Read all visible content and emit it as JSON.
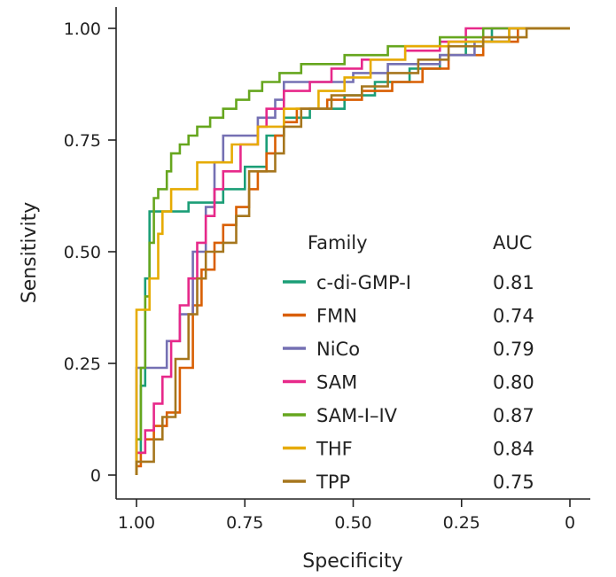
{
  "chart_data": {
    "type": "line",
    "title": "",
    "xlabel": "Specificity",
    "ylabel": "Sensitivity",
    "xlim": [
      1.0,
      0.0
    ],
    "ylim": [
      0.0,
      1.0
    ],
    "x_reversed": true,
    "xticks": [
      1.0,
      0.75,
      0.5,
      0.25,
      0.0
    ],
    "xtick_labels": [
      "1.00",
      "0.75",
      "0.50",
      "0.25",
      "0"
    ],
    "yticks": [
      0.0,
      0.25,
      0.5,
      0.75,
      1.0
    ],
    "ytick_labels": [
      "0",
      "0.25",
      "0.50",
      "0.75",
      "1.00"
    ],
    "grid": false,
    "legend": {
      "position": "bottom-right",
      "title": "Family",
      "value_title": "AUC"
    },
    "series": [
      {
        "name": "c-di-GMP-I",
        "auc": "0.81",
        "color": "#1b9e77",
        "points": [
          [
            1.0,
            0.0
          ],
          [
            1.0,
            0.05
          ],
          [
            0.99,
            0.05
          ],
          [
            0.99,
            0.2
          ],
          [
            0.98,
            0.2
          ],
          [
            0.98,
            0.44
          ],
          [
            0.97,
            0.44
          ],
          [
            0.97,
            0.59
          ],
          [
            0.88,
            0.59
          ],
          [
            0.88,
            0.61
          ],
          [
            0.8,
            0.61
          ],
          [
            0.8,
            0.64
          ],
          [
            0.75,
            0.64
          ],
          [
            0.75,
            0.69
          ],
          [
            0.7,
            0.69
          ],
          [
            0.7,
            0.76
          ],
          [
            0.66,
            0.76
          ],
          [
            0.66,
            0.8
          ],
          [
            0.6,
            0.8
          ],
          [
            0.6,
            0.82
          ],
          [
            0.52,
            0.82
          ],
          [
            0.52,
            0.85
          ],
          [
            0.45,
            0.85
          ],
          [
            0.45,
            0.88
          ],
          [
            0.37,
            0.88
          ],
          [
            0.37,
            0.91
          ],
          [
            0.3,
            0.91
          ],
          [
            0.3,
            0.94
          ],
          [
            0.24,
            0.94
          ],
          [
            0.24,
            0.97
          ],
          [
            0.18,
            0.97
          ],
          [
            0.18,
            1.0
          ],
          [
            0.0,
            1.0
          ]
        ]
      },
      {
        "name": "FMN",
        "auc": "0.74",
        "color": "#d95f02",
        "points": [
          [
            1.0,
            0.0
          ],
          [
            1.0,
            0.02
          ],
          [
            0.99,
            0.02
          ],
          [
            0.99,
            0.05
          ],
          [
            0.98,
            0.05
          ],
          [
            0.98,
            0.08
          ],
          [
            0.96,
            0.08
          ],
          [
            0.96,
            0.11
          ],
          [
            0.93,
            0.11
          ],
          [
            0.93,
            0.14
          ],
          [
            0.9,
            0.14
          ],
          [
            0.9,
            0.24
          ],
          [
            0.87,
            0.24
          ],
          [
            0.87,
            0.38
          ],
          [
            0.85,
            0.38
          ],
          [
            0.85,
            0.46
          ],
          [
            0.82,
            0.46
          ],
          [
            0.82,
            0.52
          ],
          [
            0.8,
            0.52
          ],
          [
            0.8,
            0.56
          ],
          [
            0.77,
            0.56
          ],
          [
            0.77,
            0.6
          ],
          [
            0.74,
            0.6
          ],
          [
            0.74,
            0.64
          ],
          [
            0.72,
            0.64
          ],
          [
            0.72,
            0.68
          ],
          [
            0.7,
            0.68
          ],
          [
            0.7,
            0.72
          ],
          [
            0.68,
            0.72
          ],
          [
            0.68,
            0.76
          ],
          [
            0.66,
            0.76
          ],
          [
            0.66,
            0.79
          ],
          [
            0.63,
            0.79
          ],
          [
            0.63,
            0.82
          ],
          [
            0.56,
            0.82
          ],
          [
            0.56,
            0.84
          ],
          [
            0.48,
            0.84
          ],
          [
            0.48,
            0.86
          ],
          [
            0.41,
            0.86
          ],
          [
            0.41,
            0.88
          ],
          [
            0.34,
            0.88
          ],
          [
            0.34,
            0.91
          ],
          [
            0.28,
            0.91
          ],
          [
            0.28,
            0.94
          ],
          [
            0.2,
            0.94
          ],
          [
            0.2,
            0.97
          ],
          [
            0.12,
            0.97
          ],
          [
            0.12,
            1.0
          ],
          [
            0.0,
            1.0
          ]
        ]
      },
      {
        "name": "NiCo",
        "auc": "0.79",
        "color": "#7570b3",
        "points": [
          [
            1.0,
            0.0
          ],
          [
            1.0,
            0.24
          ],
          [
            0.93,
            0.24
          ],
          [
            0.93,
            0.3
          ],
          [
            0.9,
            0.3
          ],
          [
            0.9,
            0.36
          ],
          [
            0.87,
            0.36
          ],
          [
            0.87,
            0.5
          ],
          [
            0.84,
            0.5
          ],
          [
            0.84,
            0.6
          ],
          [
            0.82,
            0.6
          ],
          [
            0.82,
            0.7
          ],
          [
            0.8,
            0.7
          ],
          [
            0.8,
            0.76
          ],
          [
            0.72,
            0.76
          ],
          [
            0.72,
            0.8
          ],
          [
            0.68,
            0.8
          ],
          [
            0.68,
            0.84
          ],
          [
            0.66,
            0.84
          ],
          [
            0.66,
            0.88
          ],
          [
            0.5,
            0.88
          ],
          [
            0.5,
            0.9
          ],
          [
            0.42,
            0.9
          ],
          [
            0.42,
            0.92
          ],
          [
            0.3,
            0.92
          ],
          [
            0.3,
            0.94
          ],
          [
            0.22,
            0.94
          ],
          [
            0.22,
            0.97
          ],
          [
            0.14,
            0.97
          ],
          [
            0.14,
            1.0
          ],
          [
            0.0,
            1.0
          ]
        ]
      },
      {
        "name": "SAM",
        "auc": "0.80",
        "color": "#e7298a",
        "points": [
          [
            1.0,
            0.0
          ],
          [
            1.0,
            0.05
          ],
          [
            0.98,
            0.05
          ],
          [
            0.98,
            0.1
          ],
          [
            0.96,
            0.1
          ],
          [
            0.96,
            0.16
          ],
          [
            0.94,
            0.16
          ],
          [
            0.94,
            0.22
          ],
          [
            0.92,
            0.22
          ],
          [
            0.92,
            0.3
          ],
          [
            0.9,
            0.3
          ],
          [
            0.9,
            0.38
          ],
          [
            0.88,
            0.38
          ],
          [
            0.88,
            0.44
          ],
          [
            0.86,
            0.44
          ],
          [
            0.86,
            0.52
          ],
          [
            0.84,
            0.52
          ],
          [
            0.84,
            0.58
          ],
          [
            0.82,
            0.58
          ],
          [
            0.82,
            0.64
          ],
          [
            0.8,
            0.64
          ],
          [
            0.8,
            0.68
          ],
          [
            0.76,
            0.68
          ],
          [
            0.76,
            0.74
          ],
          [
            0.72,
            0.74
          ],
          [
            0.72,
            0.78
          ],
          [
            0.7,
            0.78
          ],
          [
            0.7,
            0.82
          ],
          [
            0.66,
            0.82
          ],
          [
            0.66,
            0.86
          ],
          [
            0.6,
            0.86
          ],
          [
            0.6,
            0.88
          ],
          [
            0.55,
            0.88
          ],
          [
            0.55,
            0.91
          ],
          [
            0.48,
            0.91
          ],
          [
            0.48,
            0.93
          ],
          [
            0.38,
            0.93
          ],
          [
            0.38,
            0.95
          ],
          [
            0.3,
            0.95
          ],
          [
            0.3,
            0.97
          ],
          [
            0.24,
            0.97
          ],
          [
            0.24,
            1.0
          ],
          [
            0.0,
            1.0
          ]
        ]
      },
      {
        "name": "SAM-I–IV",
        "auc": "0.87",
        "color": "#66a61e",
        "points": [
          [
            1.0,
            0.0
          ],
          [
            1.0,
            0.08
          ],
          [
            0.99,
            0.08
          ],
          [
            0.99,
            0.24
          ],
          [
            0.98,
            0.24
          ],
          [
            0.98,
            0.4
          ],
          [
            0.97,
            0.4
          ],
          [
            0.97,
            0.52
          ],
          [
            0.96,
            0.52
          ],
          [
            0.96,
            0.62
          ],
          [
            0.95,
            0.62
          ],
          [
            0.95,
            0.64
          ],
          [
            0.93,
            0.64
          ],
          [
            0.93,
            0.68
          ],
          [
            0.92,
            0.68
          ],
          [
            0.92,
            0.72
          ],
          [
            0.9,
            0.72
          ],
          [
            0.9,
            0.74
          ],
          [
            0.88,
            0.74
          ],
          [
            0.88,
            0.76
          ],
          [
            0.86,
            0.76
          ],
          [
            0.86,
            0.78
          ],
          [
            0.83,
            0.78
          ],
          [
            0.83,
            0.8
          ],
          [
            0.8,
            0.8
          ],
          [
            0.8,
            0.82
          ],
          [
            0.77,
            0.82
          ],
          [
            0.77,
            0.84
          ],
          [
            0.74,
            0.84
          ],
          [
            0.74,
            0.86
          ],
          [
            0.71,
            0.86
          ],
          [
            0.71,
            0.88
          ],
          [
            0.67,
            0.88
          ],
          [
            0.67,
            0.9
          ],
          [
            0.62,
            0.9
          ],
          [
            0.62,
            0.92
          ],
          [
            0.52,
            0.92
          ],
          [
            0.52,
            0.94
          ],
          [
            0.42,
            0.94
          ],
          [
            0.42,
            0.96
          ],
          [
            0.3,
            0.96
          ],
          [
            0.3,
            0.98
          ],
          [
            0.2,
            0.98
          ],
          [
            0.2,
            1.0
          ],
          [
            0.0,
            1.0
          ]
        ]
      },
      {
        "name": "THF",
        "auc": "0.84",
        "color": "#e6ab02",
        "points": [
          [
            1.0,
            0.0
          ],
          [
            1.0,
            0.37
          ],
          [
            0.97,
            0.37
          ],
          [
            0.97,
            0.44
          ],
          [
            0.95,
            0.44
          ],
          [
            0.95,
            0.54
          ],
          [
            0.94,
            0.54
          ],
          [
            0.94,
            0.59
          ],
          [
            0.92,
            0.59
          ],
          [
            0.92,
            0.64
          ],
          [
            0.86,
            0.64
          ],
          [
            0.86,
            0.7
          ],
          [
            0.78,
            0.7
          ],
          [
            0.78,
            0.74
          ],
          [
            0.72,
            0.74
          ],
          [
            0.72,
            0.78
          ],
          [
            0.66,
            0.78
          ],
          [
            0.66,
            0.82
          ],
          [
            0.58,
            0.82
          ],
          [
            0.58,
            0.86
          ],
          [
            0.52,
            0.86
          ],
          [
            0.52,
            0.89
          ],
          [
            0.46,
            0.89
          ],
          [
            0.46,
            0.93
          ],
          [
            0.38,
            0.93
          ],
          [
            0.38,
            0.96
          ],
          [
            0.28,
            0.96
          ],
          [
            0.28,
            0.97
          ],
          [
            0.14,
            0.97
          ],
          [
            0.14,
            1.0
          ],
          [
            0.0,
            1.0
          ]
        ]
      },
      {
        "name": "TPP",
        "auc": "0.75",
        "color": "#a6761d",
        "points": [
          [
            1.0,
            0.0
          ],
          [
            1.0,
            0.03
          ],
          [
            0.96,
            0.03
          ],
          [
            0.96,
            0.08
          ],
          [
            0.94,
            0.08
          ],
          [
            0.94,
            0.13
          ],
          [
            0.91,
            0.13
          ],
          [
            0.91,
            0.26
          ],
          [
            0.88,
            0.26
          ],
          [
            0.88,
            0.36
          ],
          [
            0.86,
            0.36
          ],
          [
            0.86,
            0.44
          ],
          [
            0.84,
            0.44
          ],
          [
            0.84,
            0.5
          ],
          [
            0.8,
            0.5
          ],
          [
            0.8,
            0.52
          ],
          [
            0.77,
            0.52
          ],
          [
            0.77,
            0.58
          ],
          [
            0.74,
            0.58
          ],
          [
            0.74,
            0.68
          ],
          [
            0.68,
            0.68
          ],
          [
            0.68,
            0.72
          ],
          [
            0.66,
            0.72
          ],
          [
            0.66,
            0.78
          ],
          [
            0.62,
            0.78
          ],
          [
            0.62,
            0.82
          ],
          [
            0.55,
            0.82
          ],
          [
            0.55,
            0.85
          ],
          [
            0.48,
            0.85
          ],
          [
            0.48,
            0.87
          ],
          [
            0.42,
            0.87
          ],
          [
            0.42,
            0.9
          ],
          [
            0.35,
            0.9
          ],
          [
            0.35,
            0.93
          ],
          [
            0.28,
            0.93
          ],
          [
            0.28,
            0.96
          ],
          [
            0.2,
            0.96
          ],
          [
            0.2,
            0.98
          ],
          [
            0.1,
            0.98
          ],
          [
            0.1,
            1.0
          ],
          [
            0.0,
            1.0
          ]
        ]
      }
    ]
  }
}
